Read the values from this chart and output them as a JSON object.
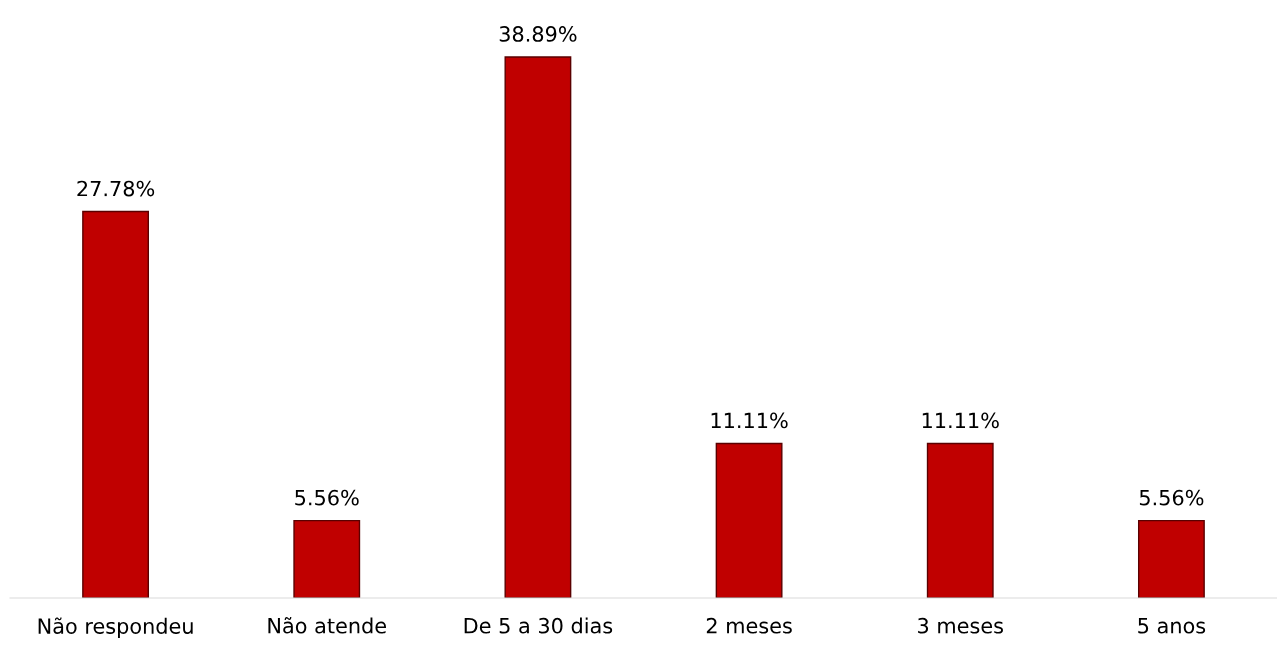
{
  "chart_data": {
    "type": "bar",
    "categories": [
      "Não respondeu",
      "Não atende",
      "De 5 a 30 dias",
      "2 meses",
      "3 meses",
      "5 anos"
    ],
    "values": [
      27.78,
      5.56,
      38.89,
      11.11,
      11.11,
      5.56
    ],
    "value_labels": [
      "27.78%",
      "5.56%",
      "38.89%",
      "11.11%",
      "11.11%",
      "5.56%"
    ],
    "color": "#c00000"
  }
}
